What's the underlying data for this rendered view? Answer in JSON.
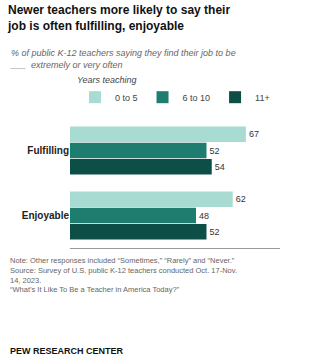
{
  "chart_data": {
    "type": "bar",
    "orientation": "horizontal",
    "title": "Newer teachers more likely to say their\njob is often fulfilling, enjoyable",
    "subtitle": "% of public K-12 teachers saying they find their job to be\n___  extremely or very often",
    "categories": [
      "Fulfilling",
      "Enjoyable"
    ],
    "series": [
      {
        "name": "0 to 5",
        "color": "#a8dbd1",
        "values": [
          67,
          62
        ]
      },
      {
        "name": "6 to 10",
        "color": "#1e7d6e",
        "values": [
          52,
          48
        ]
      },
      {
        "name": "11+",
        "color": "#0d4f47",
        "values": [
          54,
          52
        ]
      }
    ],
    "legend": "top",
    "legend_title": "Years teaching",
    "xlim": [
      0,
      80
    ],
    "tick_labels": "y",
    "grid": false,
    "data_labels": true,
    "annotations": [
      "Note: Other responses included “Sometimes,” “Rarely” and “Never.”\nSource: Survey of U.S. public K-12 teachers conducted Oct. 17-Nov.\n14, 2023.\n“What’s It Like To Be a Teacher in America Today?”",
      "PEW RESEARCH CENTER"
    ]
  }
}
